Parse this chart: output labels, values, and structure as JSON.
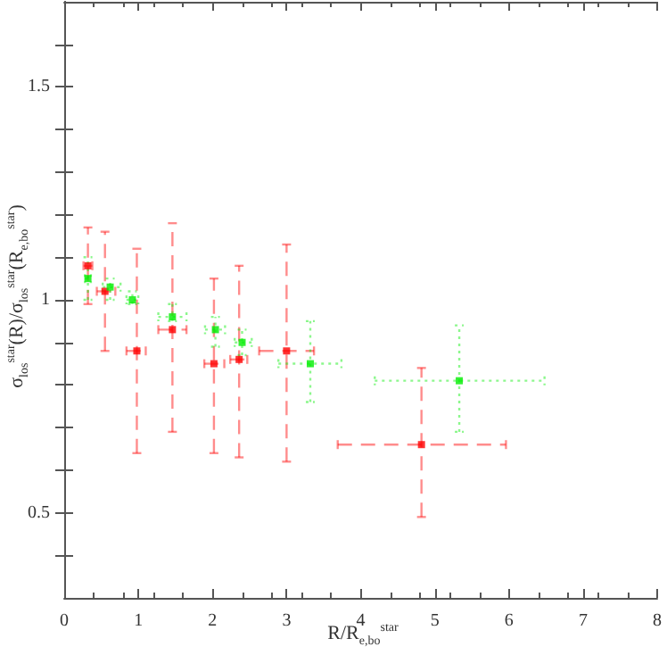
{
  "chart_data": {
    "type": "scatter",
    "xlabel": "R/R$_{e,bo}$$^{star}$",
    "ylabel": "σ$_{los}$$^{star}$(R)/σ$_{los}$$^{star}$(R$_{e,bo}$$^{star}$)",
    "xlim": [
      0,
      8
    ],
    "ylim": [
      0.3,
      1.7
    ],
    "xticks": [
      0,
      1,
      2,
      3,
      4,
      5,
      6,
      7,
      8
    ],
    "yticks": [
      {
        "value": 0.4,
        "label": null
      },
      0.5,
      {
        "value": 0.6,
        "label": null
      },
      {
        "value": 0.7,
        "label": null
      },
      {
        "value": 0.8,
        "label": null
      },
      {
        "value": 0.9,
        "label": null
      },
      1,
      {
        "value": 1.1,
        "label": null
      },
      {
        "value": 1.2,
        "label": null
      },
      {
        "value": 1.3,
        "label": null
      },
      {
        "value": 1.4,
        "label": null
      },
      1.5,
      {
        "value": 1.6,
        "label": null
      }
    ],
    "grid": false,
    "marker": "square",
    "series": [
      {
        "color": "#ff0000",
        "line_style": "dashed",
        "x": [
          0.32,
          0.55,
          0.98,
          1.46,
          2.02,
          2.36,
          3.0,
          4.82
        ],
        "values": [
          1.08,
          1.02,
          0.88,
          0.93,
          0.85,
          0.86,
          0.88,
          0.66
        ],
        "errors": [
          [
            0.99,
            1.17
          ],
          [
            0.88,
            1.16
          ],
          [
            0.64,
            1.12
          ],
          [
            0.69,
            1.18
          ],
          [
            0.64,
            1.05
          ],
          [
            0.63,
            1.08
          ],
          [
            0.62,
            1.13
          ],
          [
            0.49,
            0.84
          ]
        ],
        "xerrors": [
          [
            0.26,
            0.38
          ],
          [
            0.44,
            0.69
          ],
          [
            0.84,
            1.1
          ],
          [
            1.27,
            1.65
          ],
          [
            1.89,
            2.16
          ],
          [
            2.24,
            2.47
          ],
          [
            2.63,
            3.37
          ],
          [
            3.69,
            5.96
          ]
        ]
      },
      {
        "color": "#00ee00",
        "line_style": "dotted",
        "x": [
          0.32,
          0.62,
          0.92,
          1.46,
          2.04,
          2.4,
          3.32,
          5.33
        ],
        "values": [
          1.05,
          1.03,
          1.0,
          0.96,
          0.93,
          0.9,
          0.85,
          0.81
        ],
        "errors": [
          [
            1.0,
            1.1
          ],
          [
            1.0,
            1.05
          ],
          [
            0.99,
            1.02
          ],
          [
            0.95,
            0.99
          ],
          [
            0.89,
            0.96
          ],
          [
            0.87,
            0.93
          ],
          [
            0.76,
            0.95
          ],
          [
            0.69,
            0.94
          ]
        ],
        "xerrors": [
          [
            0.28,
            0.36
          ],
          [
            0.52,
            0.76
          ],
          [
            0.84,
            1.0
          ],
          [
            1.27,
            1.65
          ],
          [
            1.9,
            2.17
          ],
          [
            2.3,
            2.53
          ],
          [
            2.89,
            3.74
          ],
          [
            4.19,
            6.48
          ]
        ]
      }
    ]
  }
}
